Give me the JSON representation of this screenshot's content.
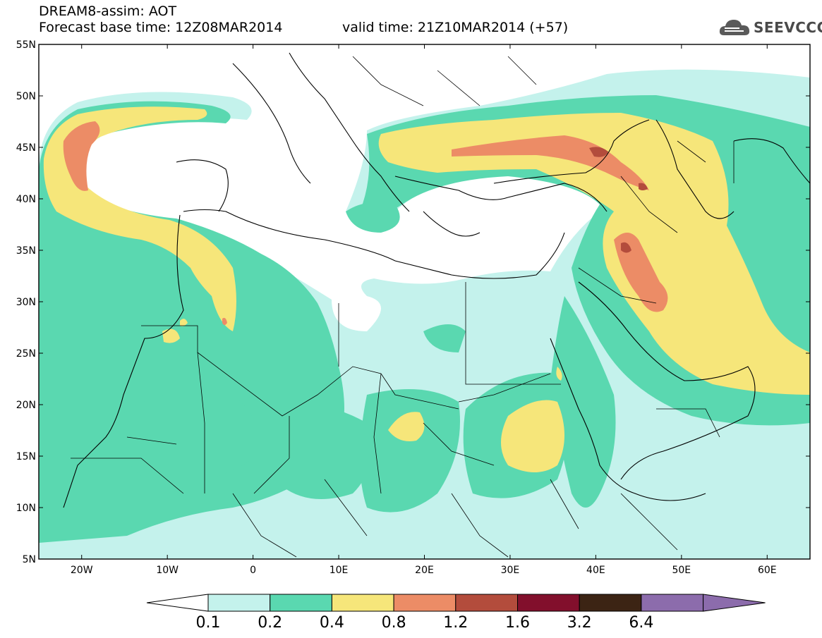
{
  "header": {
    "model_title": "DREAM8-assim: AOT",
    "base_time": "Forecast base time: 12Z08MAR2014",
    "valid_time": "valid time: 21Z10MAR2014 (+57)"
  },
  "logo": {
    "text": "SEEVCCC",
    "icon": "cloud-icon"
  },
  "map": {
    "lon_range": [
      -25,
      65
    ],
    "lat_range": [
      5,
      55
    ],
    "lat_ticks": [
      "55N",
      "50N",
      "45N",
      "40N",
      "35N",
      "30N",
      "25N",
      "20N",
      "15N",
      "10N",
      "5N"
    ],
    "lon_ticks": [
      "20W",
      "10W",
      "0",
      "10E",
      "20E",
      "30E",
      "40E",
      "50E",
      "60E"
    ]
  },
  "colorbar": {
    "labels": [
      "0.1",
      "0.2",
      "0.4",
      "0.8",
      "1.2",
      "1.6",
      "3.2",
      "6.4"
    ],
    "colors": [
      "#ffffff",
      "#c4f2ec",
      "#5ad8b0",
      "#f6e67a",
      "#ec8c66",
      "#b34c3c",
      "#820f2c",
      "#3c2414",
      "#8c6cac"
    ]
  }
}
